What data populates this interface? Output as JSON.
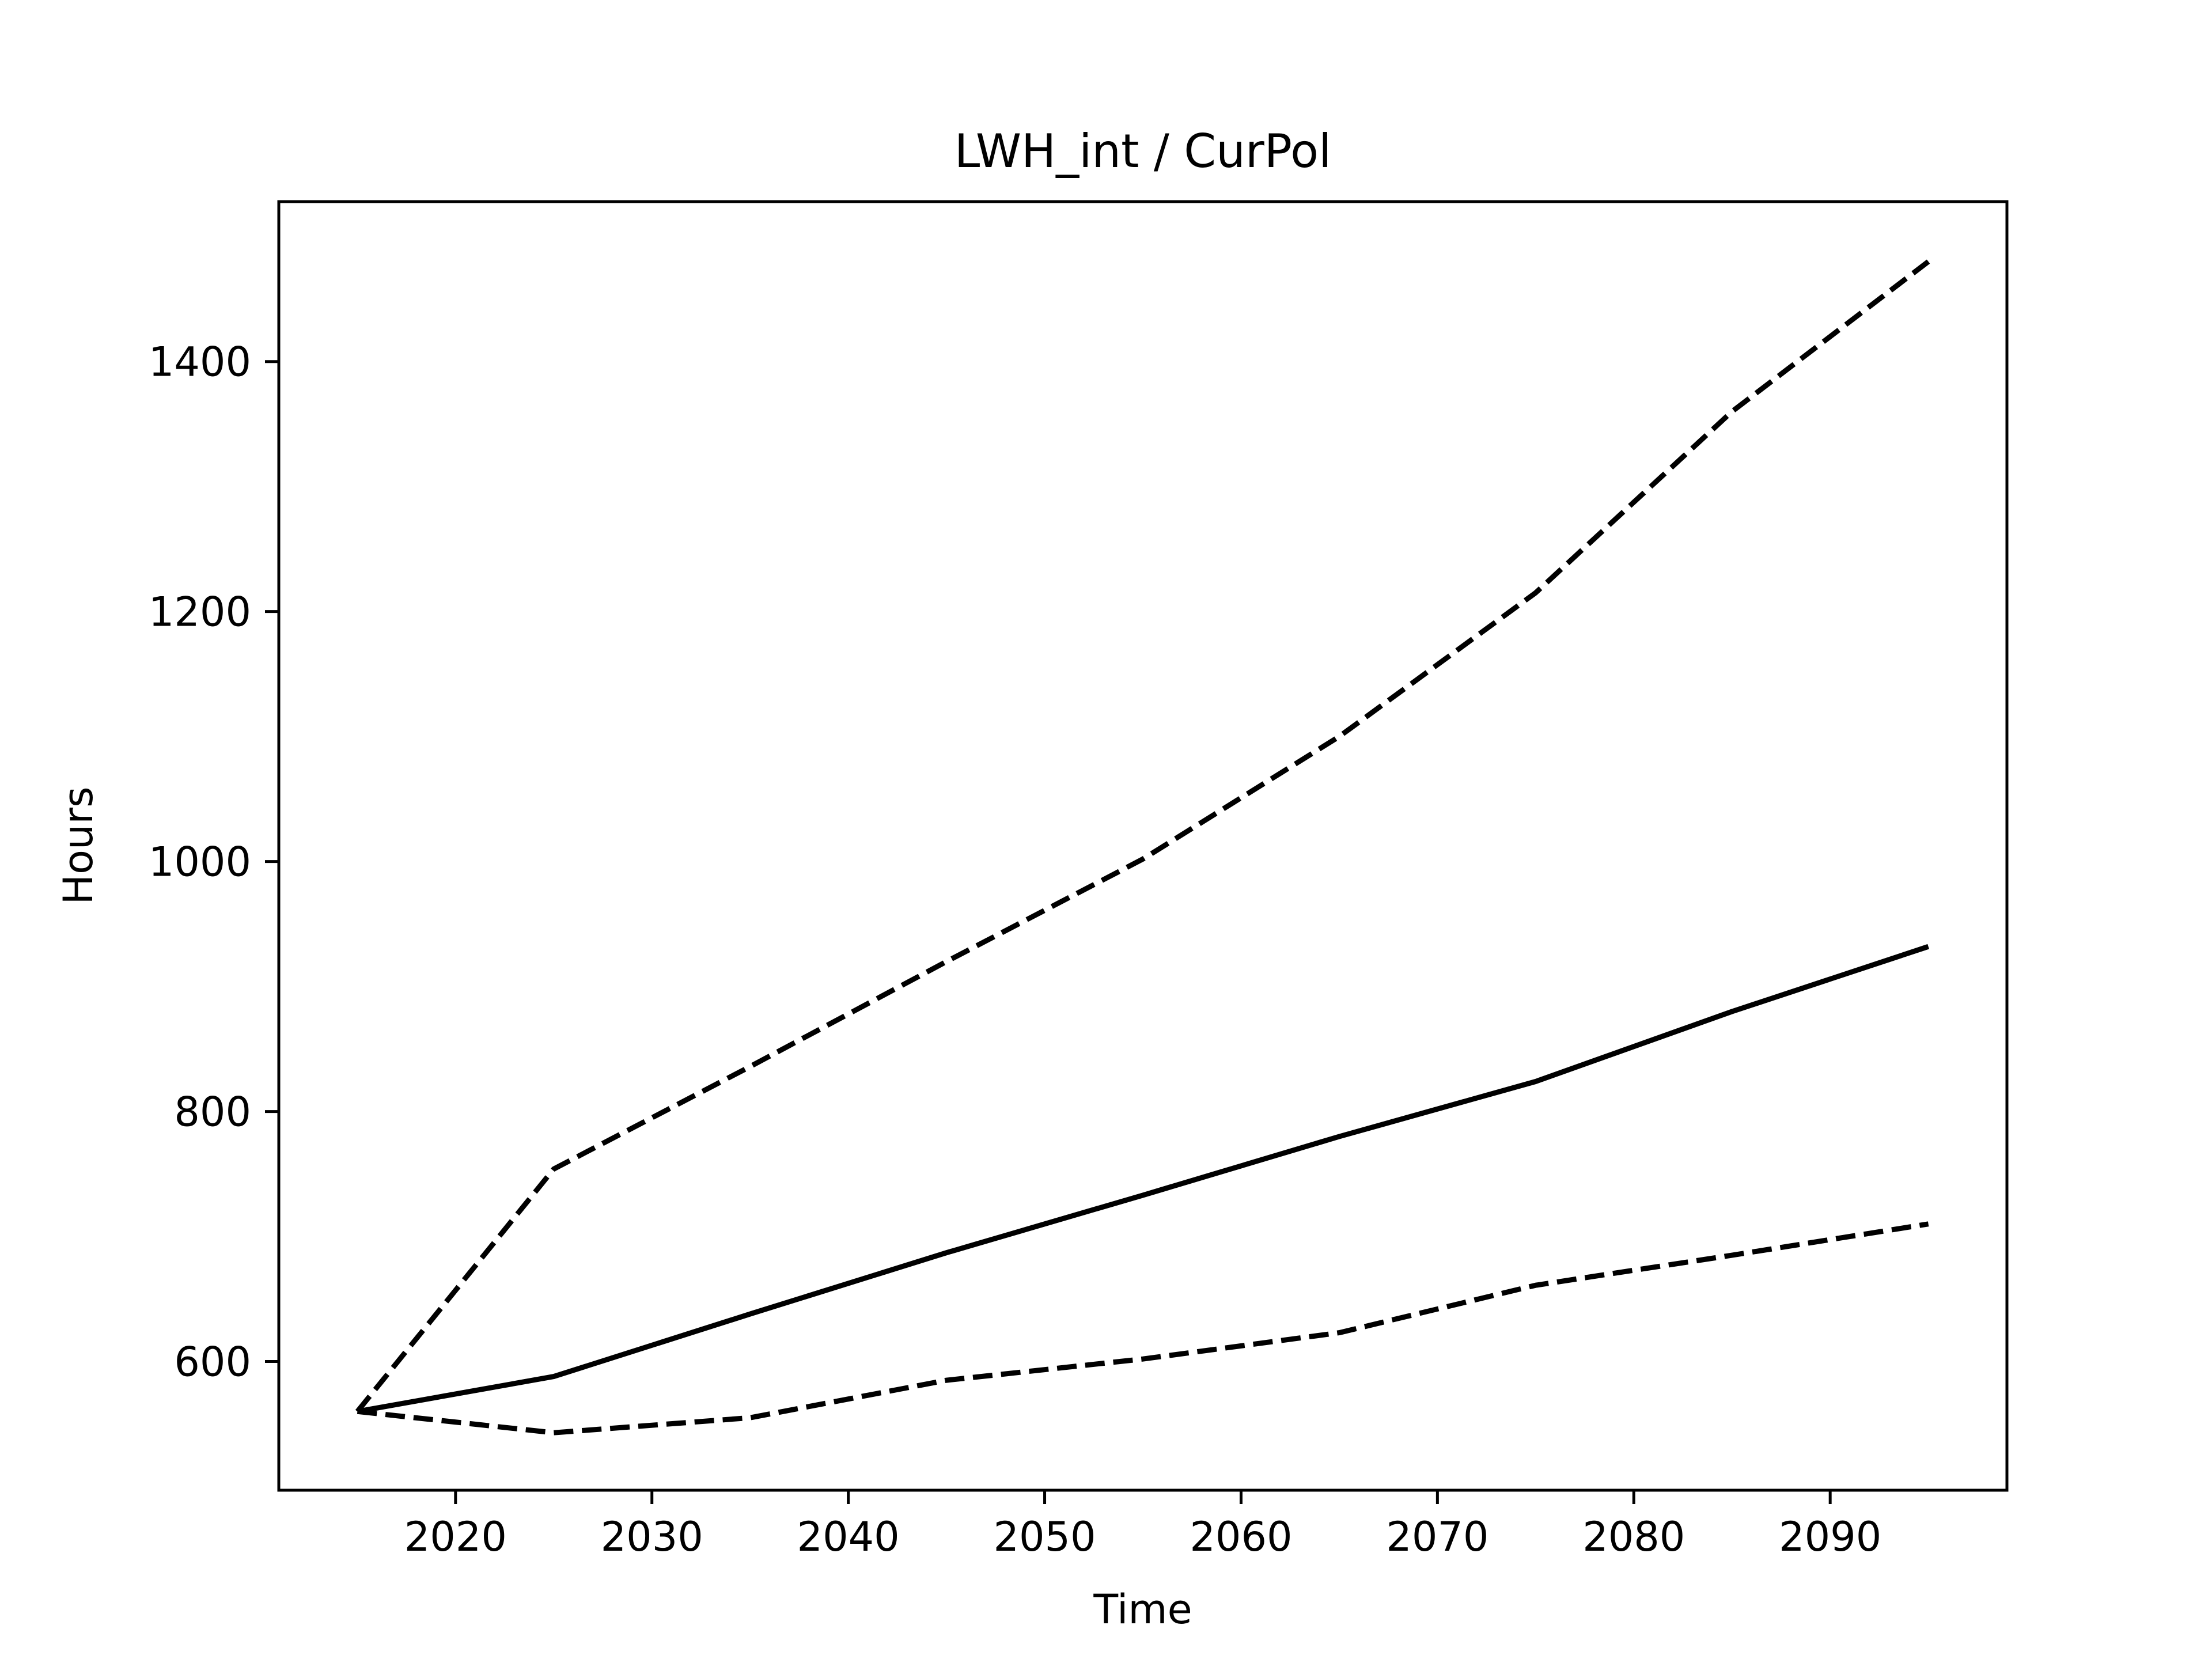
{
  "chart_data": {
    "type": "line",
    "title": "LWH_int / CurPol",
    "xlabel": "Time",
    "ylabel": "Hours",
    "xlim": [
      2011,
      2099
    ],
    "ylim": [
      497,
      1528
    ],
    "xticks": [
      2020,
      2030,
      2040,
      2050,
      2060,
      2070,
      2080,
      2090
    ],
    "yticks": [
      600,
      800,
      1000,
      1200,
      1400
    ],
    "grid": false,
    "legend": "none",
    "x": [
      2015,
      2025,
      2035,
      2045,
      2055,
      2065,
      2075,
      2085,
      2095
    ],
    "series": [
      {
        "style": "dashed",
        "color": "#000000",
        "values": [
          560,
          754,
          836,
          920,
          1002,
          1100,
          1215,
          1360,
          1480
        ]
      },
      {
        "style": "solid",
        "color": "#000000",
        "values": [
          560,
          588,
          638,
          687,
          733,
          780,
          824,
          880,
          932
        ]
      },
      {
        "style": "dashed",
        "color": "#000000",
        "values": [
          560,
          543,
          555,
          585,
          602,
          623,
          661,
          685,
          710
        ]
      }
    ]
  }
}
